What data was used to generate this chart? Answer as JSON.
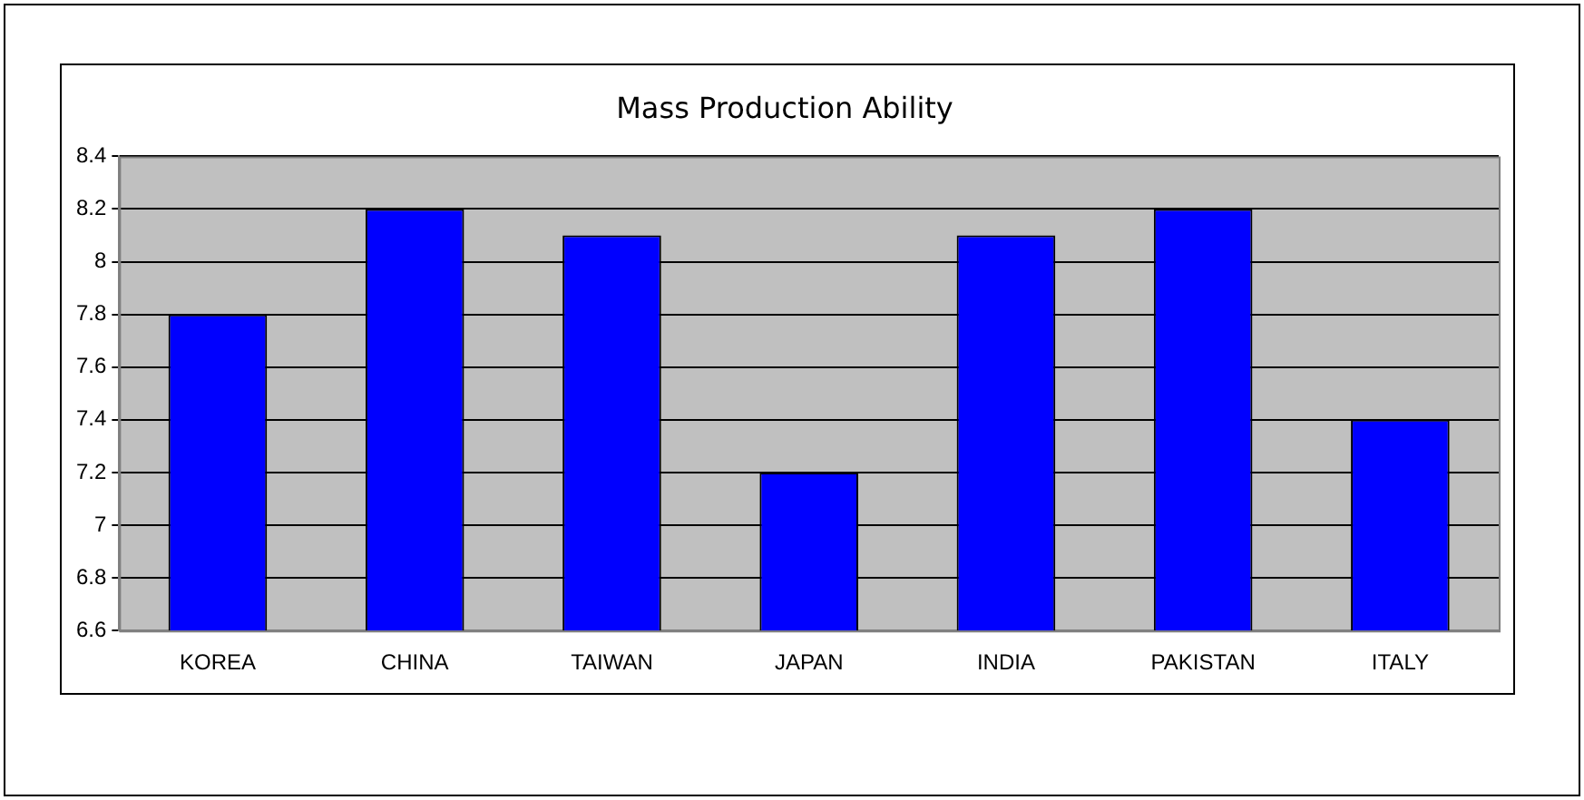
{
  "chart_data": {
    "type": "bar",
    "title": "Mass Production Ability",
    "categories": [
      "KOREA",
      "CHINA",
      "TAIWAN",
      "JAPAN",
      "INDIA",
      "PAKISTAN",
      "ITALY"
    ],
    "values": [
      7.8,
      8.2,
      8.1,
      7.2,
      8.1,
      8.2,
      7.4
    ],
    "color": "#0000ff",
    "ylim": [
      6.6,
      8.4
    ],
    "yticks": [
      6.6,
      6.8,
      7,
      7.2,
      7.4,
      7.6,
      7.8,
      8,
      8.2,
      8.4
    ],
    "grid": "y",
    "legend": false
  }
}
